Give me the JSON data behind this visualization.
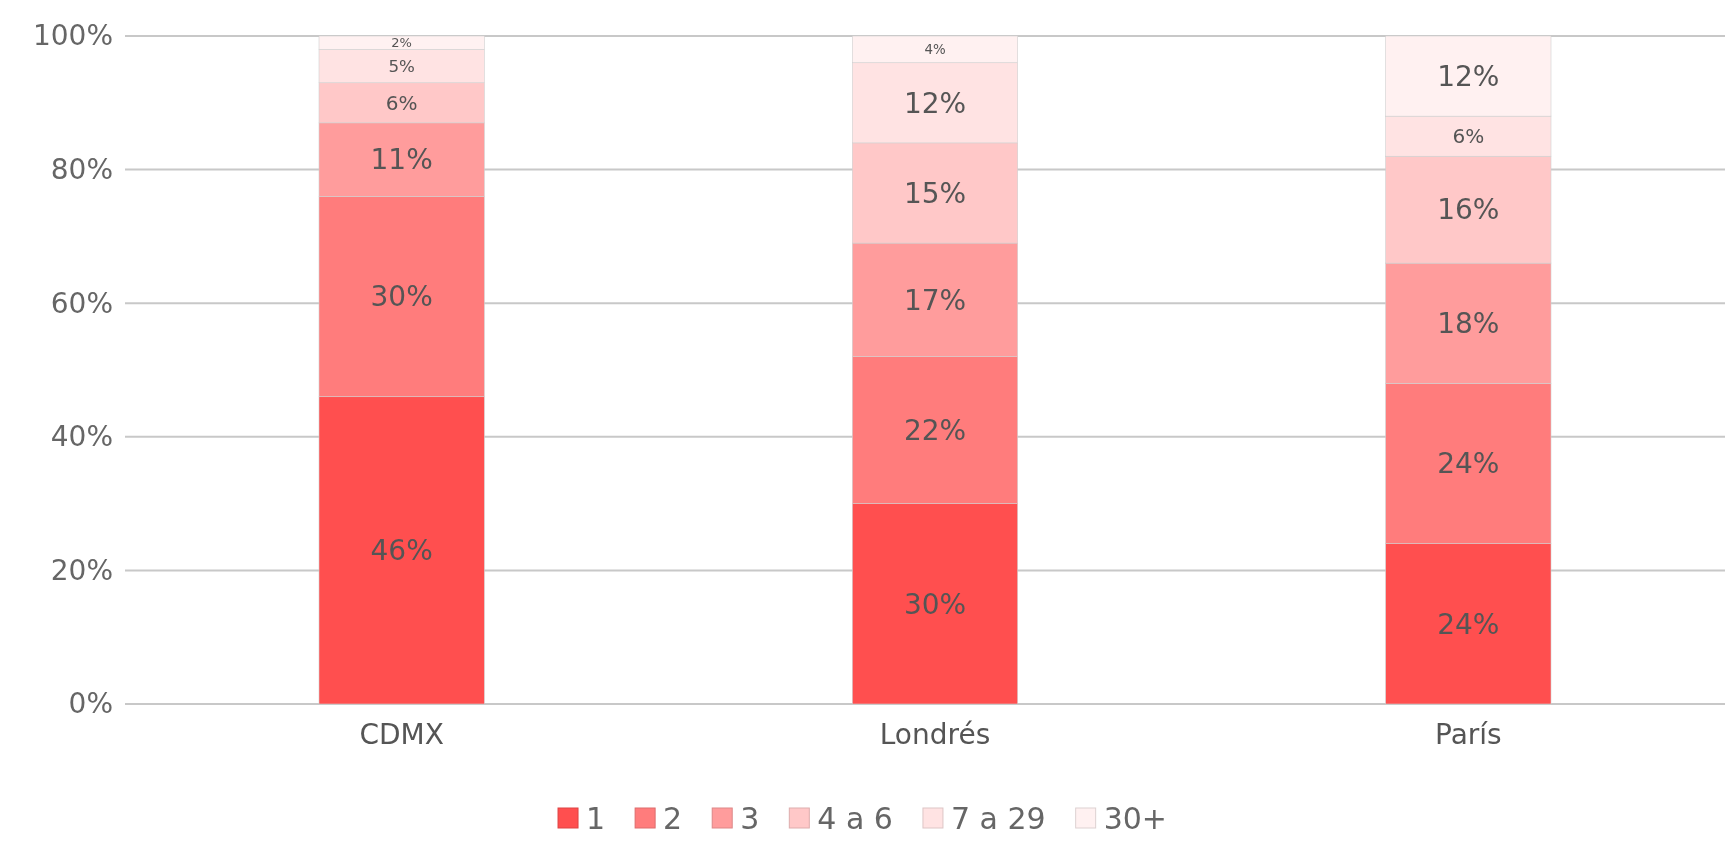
{
  "chart_data": {
    "type": "bar",
    "stacked": true,
    "categories": [
      "CDMX",
      "Londrés",
      "París"
    ],
    "series": [
      {
        "name": "1",
        "color": "#ff4f4f",
        "values": [
          46,
          30,
          24
        ],
        "value_labels": [
          "46%",
          "30%",
          "24%"
        ]
      },
      {
        "name": "2",
        "color": "#ff7c7c",
        "values": [
          30,
          22,
          24
        ],
        "value_labels": [
          "30%",
          "22%",
          "24%"
        ]
      },
      {
        "name": "3",
        "color": "#ff9c9c",
        "values": [
          11,
          17,
          18
        ],
        "value_labels": [
          "11%",
          "17%",
          "18%"
        ]
      },
      {
        "name": "4 a 6",
        "color": "#ffc8c8",
        "values": [
          6,
          15,
          16
        ],
        "value_labels": [
          "6%",
          "15%",
          "16%"
        ]
      },
      {
        "name": "7 a 29",
        "color": "#ffe3e3",
        "values": [
          5,
          12,
          6
        ],
        "value_labels": [
          "5%",
          "12%",
          "6%"
        ]
      },
      {
        "name": "30+",
        "color": "#fff1f1",
        "values": [
          2,
          4,
          12
        ],
        "value_labels": [
          "2%",
          "4%",
          "12%"
        ]
      }
    ],
    "ylim": [
      0,
      100
    ],
    "yticks": [
      {
        "value": 0,
        "label": "0%"
      },
      {
        "value": 20,
        "label": "20%"
      },
      {
        "value": 40,
        "label": "40%"
      },
      {
        "value": 60,
        "label": "60%"
      },
      {
        "value": 80,
        "label": "80%"
      },
      {
        "value": 100,
        "label": "100%"
      }
    ],
    "grid": "y",
    "legend": "bottom"
  }
}
